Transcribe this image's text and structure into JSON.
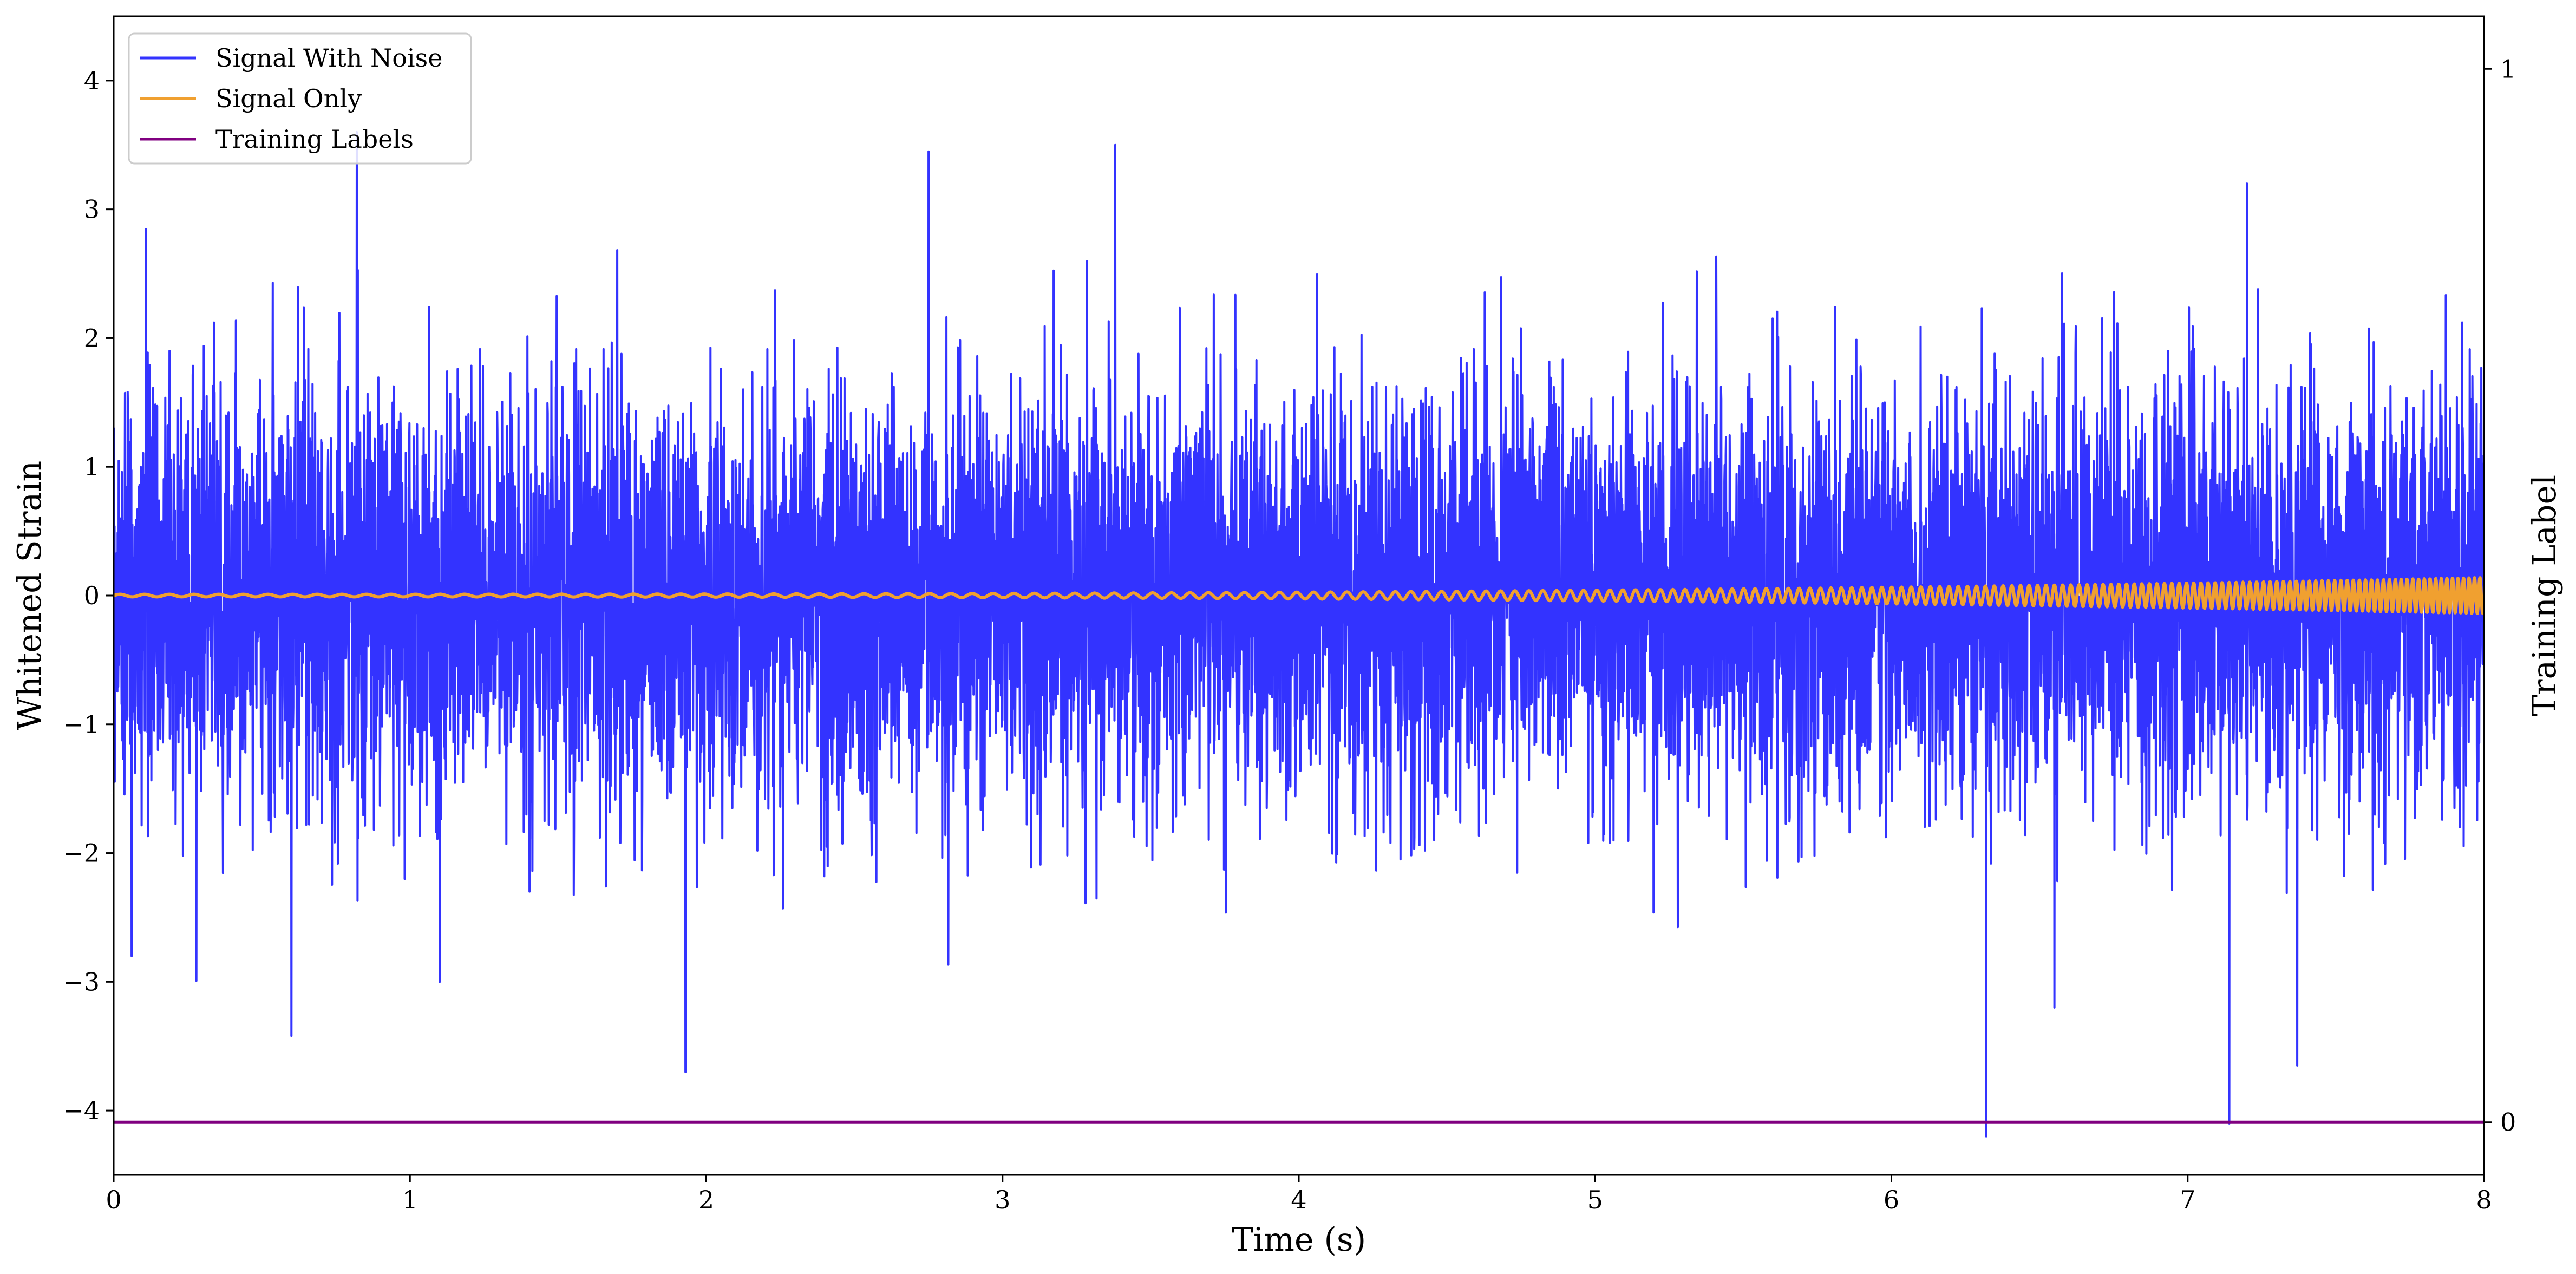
{
  "chart_data": {
    "type": "line",
    "title": "",
    "xlabel": "Time (s)",
    "ylabel": "Whitened Strain",
    "y2label": "Training Label",
    "xlim": [
      0,
      8
    ],
    "ylim": [
      -4.5,
      4.5
    ],
    "y2lim": [
      -0.05,
      1.05
    ],
    "x_ticks": [
      0,
      1,
      2,
      3,
      4,
      5,
      6,
      7,
      8
    ],
    "x_tick_labels": [
      "0",
      "1",
      "2",
      "3",
      "4",
      "5",
      "6",
      "7",
      "8"
    ],
    "y_ticks": [
      -4,
      -3,
      -2,
      -1,
      0,
      1,
      2,
      3,
      4
    ],
    "y_tick_labels": [
      "−4",
      "−3",
      "−2",
      "−1",
      "0",
      "1",
      "2",
      "3",
      "4"
    ],
    "y2_ticks": [
      0,
      1
    ],
    "y2_tick_labels": [
      "0",
      "1"
    ],
    "grid": false,
    "legend_position": "top-left",
    "series": [
      {
        "name": "Signal With Noise",
        "color": "#3333ff",
        "axis": "left",
        "x_start": 0,
        "x_end": 8,
        "noise_std": 0.8,
        "notable_peaks": [
          {
            "x": 0.6,
            "y": 3.4
          },
          {
            "x": 0.82,
            "y": 3.6
          },
          {
            "x": 1.1,
            "y": 3.9
          },
          {
            "x": 2.75,
            "y": 3.45
          },
          {
            "x": 3.38,
            "y": 3.5
          },
          {
            "x": 7.2,
            "y": 3.2
          }
        ],
        "notable_troughs": [
          {
            "x": 0.06,
            "y": -2.8
          },
          {
            "x": 0.6,
            "y": -3.42
          },
          {
            "x": 1.1,
            "y": -3.0
          },
          {
            "x": 1.93,
            "y": -3.7
          },
          {
            "x": 6.32,
            "y": -4.2
          },
          {
            "x": 6.55,
            "y": -3.2
          },
          {
            "x": 7.14,
            "y": -4.1
          },
          {
            "x": 7.37,
            "y": -3.65
          }
        ]
      },
      {
        "name": "Signal Only",
        "color": "#f0a030",
        "axis": "left",
        "x_start": 0,
        "x_end": 8,
        "amplitude_start": 0.01,
        "amplitude_end": 0.14,
        "frequency_start_hz": 12,
        "frequency_end_hz": 55
      },
      {
        "name": "Training Labels",
        "color": "#800080",
        "axis": "right",
        "x": [
          0,
          8
        ],
        "values": [
          0,
          0
        ]
      }
    ]
  }
}
